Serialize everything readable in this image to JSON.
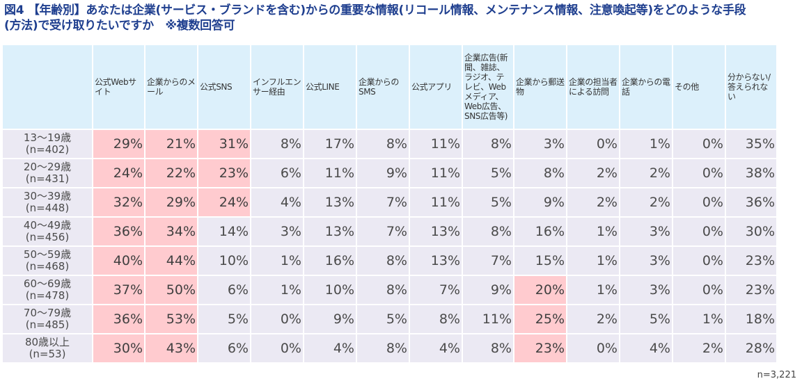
{
  "title": {
    "line1": "図4 【年齢別】あなたは企業(サービス・ブランドを含む)からの重要な情報(リコール情報、メンテナンス情報、注意喚起等)をどのような手段",
    "line2": "(方法)で受け取りたいですか　※複数回答可"
  },
  "colors": {
    "title": "#1f3f8f",
    "header_bg": "#dcf0fb",
    "cell_bg": "#ebe9f3",
    "highlight_bg": "#ffcbcf"
  },
  "footnote": "n=3,221",
  "chart_data": {
    "type": "table",
    "title": "図4 【年齢別】あなたは企業(サービス・ブランドを含む)からの重要な情報(リコール情報、メンテナンス情報、注意喚起等)をどのような手段(方法)で受け取りたいですか ※複数回答可",
    "columns": [
      "公式Webサイト",
      "企業からのメール",
      "公式SNS",
      "インフルエンサー経由",
      "公式LINE",
      "企業からのSMS",
      "公式アプリ",
      "企業広告(新聞、雑誌、ラジオ、テレビ、Webメディア、Web広告、SNS広告等)",
      "企業から郵送物",
      "企業の担当者による訪問",
      "企業からの電話",
      "その他",
      "分からない/答えられない"
    ],
    "rows": [
      {
        "label": "13〜19歳",
        "n": "(n=402)",
        "values": [
          "29%",
          "21%",
          "31%",
          "8%",
          "17%",
          "8%",
          "11%",
          "8%",
          "3%",
          "0%",
          "1%",
          "0%",
          "35%"
        ],
        "highlight": [
          0,
          1,
          2
        ]
      },
      {
        "label": "20〜29歳",
        "n": "(n=431)",
        "values": [
          "24%",
          "22%",
          "23%",
          "6%",
          "11%",
          "9%",
          "11%",
          "5%",
          "8%",
          "2%",
          "2%",
          "0%",
          "38%"
        ],
        "highlight": [
          0,
          1,
          2
        ]
      },
      {
        "label": "30〜39歳",
        "n": "(n=448)",
        "values": [
          "32%",
          "29%",
          "24%",
          "4%",
          "13%",
          "7%",
          "11%",
          "5%",
          "9%",
          "2%",
          "2%",
          "0%",
          "36%"
        ],
        "highlight": [
          0,
          1,
          2
        ]
      },
      {
        "label": "40〜49歳",
        "n": "(n=456)",
        "values": [
          "36%",
          "34%",
          "14%",
          "3%",
          "13%",
          "7%",
          "13%",
          "8%",
          "16%",
          "1%",
          "3%",
          "0%",
          "30%"
        ],
        "highlight": [
          0,
          1
        ]
      },
      {
        "label": "50〜59歳",
        "n": "(n=468)",
        "values": [
          "40%",
          "44%",
          "10%",
          "1%",
          "16%",
          "8%",
          "13%",
          "7%",
          "15%",
          "1%",
          "3%",
          "0%",
          "23%"
        ],
        "highlight": [
          0,
          1
        ]
      },
      {
        "label": "60〜69歳",
        "n": "(n=478)",
        "values": [
          "37%",
          "50%",
          "6%",
          "1%",
          "10%",
          "8%",
          "7%",
          "9%",
          "20%",
          "1%",
          "3%",
          "0%",
          "23%"
        ],
        "highlight": [
          0,
          1,
          8
        ]
      },
      {
        "label": "70〜79歳",
        "n": "(n=485)",
        "values": [
          "36%",
          "53%",
          "5%",
          "0%",
          "9%",
          "5%",
          "8%",
          "11%",
          "25%",
          "2%",
          "5%",
          "1%",
          "18%"
        ],
        "highlight": [
          0,
          1,
          8
        ]
      },
      {
        "label": "80歳以上",
        "n": "(n=53)",
        "values": [
          "30%",
          "43%",
          "6%",
          "0%",
          "4%",
          "8%",
          "4%",
          "8%",
          "23%",
          "0%",
          "4%",
          "2%",
          "28%"
        ],
        "highlight": [
          0,
          1,
          8
        ]
      }
    ],
    "total_n": "n=3,221"
  }
}
